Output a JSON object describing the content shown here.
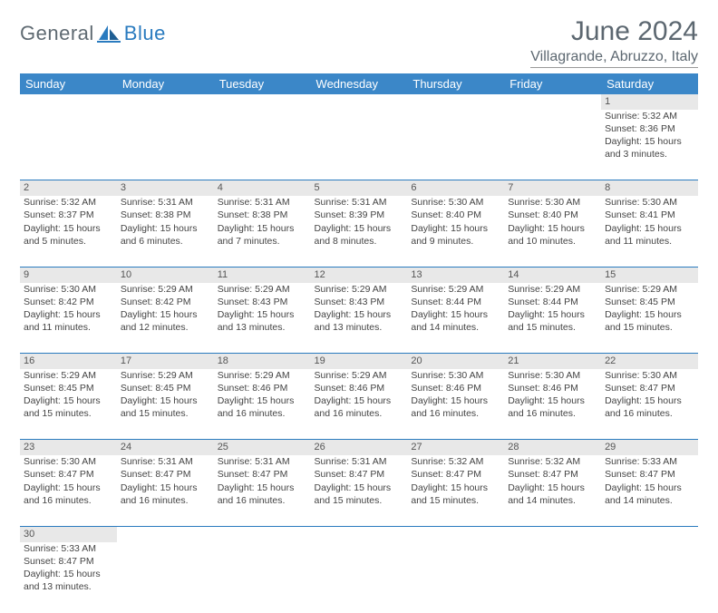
{
  "logo": {
    "text1": "General",
    "text2": "Blue"
  },
  "title": "June 2024",
  "location": "Villagrande, Abruzzo, Italy",
  "colors": {
    "header_bg": "#3b87c8",
    "header_text": "#ffffff",
    "accent": "#2a7bbf",
    "daynum_bg": "#e8e8e8",
    "text": "#444444",
    "title_text": "#5c6770"
  },
  "weekdays": [
    "Sunday",
    "Monday",
    "Tuesday",
    "Wednesday",
    "Thursday",
    "Friday",
    "Saturday"
  ],
  "weeks": [
    [
      null,
      null,
      null,
      null,
      null,
      null,
      {
        "n": "1",
        "sr": "5:32 AM",
        "ss": "8:36 PM",
        "dl": "15 hours and 3 minutes."
      }
    ],
    [
      {
        "n": "2",
        "sr": "5:32 AM",
        "ss": "8:37 PM",
        "dl": "15 hours and 5 minutes."
      },
      {
        "n": "3",
        "sr": "5:31 AM",
        "ss": "8:38 PM",
        "dl": "15 hours and 6 minutes."
      },
      {
        "n": "4",
        "sr": "5:31 AM",
        "ss": "8:38 PM",
        "dl": "15 hours and 7 minutes."
      },
      {
        "n": "5",
        "sr": "5:31 AM",
        "ss": "8:39 PM",
        "dl": "15 hours and 8 minutes."
      },
      {
        "n": "6",
        "sr": "5:30 AM",
        "ss": "8:40 PM",
        "dl": "15 hours and 9 minutes."
      },
      {
        "n": "7",
        "sr": "5:30 AM",
        "ss": "8:40 PM",
        "dl": "15 hours and 10 minutes."
      },
      {
        "n": "8",
        "sr": "5:30 AM",
        "ss": "8:41 PM",
        "dl": "15 hours and 11 minutes."
      }
    ],
    [
      {
        "n": "9",
        "sr": "5:30 AM",
        "ss": "8:42 PM",
        "dl": "15 hours and 11 minutes."
      },
      {
        "n": "10",
        "sr": "5:29 AM",
        "ss": "8:42 PM",
        "dl": "15 hours and 12 minutes."
      },
      {
        "n": "11",
        "sr": "5:29 AM",
        "ss": "8:43 PM",
        "dl": "15 hours and 13 minutes."
      },
      {
        "n": "12",
        "sr": "5:29 AM",
        "ss": "8:43 PM",
        "dl": "15 hours and 13 minutes."
      },
      {
        "n": "13",
        "sr": "5:29 AM",
        "ss": "8:44 PM",
        "dl": "15 hours and 14 minutes."
      },
      {
        "n": "14",
        "sr": "5:29 AM",
        "ss": "8:44 PM",
        "dl": "15 hours and 15 minutes."
      },
      {
        "n": "15",
        "sr": "5:29 AM",
        "ss": "8:45 PM",
        "dl": "15 hours and 15 minutes."
      }
    ],
    [
      {
        "n": "16",
        "sr": "5:29 AM",
        "ss": "8:45 PM",
        "dl": "15 hours and 15 minutes."
      },
      {
        "n": "17",
        "sr": "5:29 AM",
        "ss": "8:45 PM",
        "dl": "15 hours and 15 minutes."
      },
      {
        "n": "18",
        "sr": "5:29 AM",
        "ss": "8:46 PM",
        "dl": "15 hours and 16 minutes."
      },
      {
        "n": "19",
        "sr": "5:29 AM",
        "ss": "8:46 PM",
        "dl": "15 hours and 16 minutes."
      },
      {
        "n": "20",
        "sr": "5:30 AM",
        "ss": "8:46 PM",
        "dl": "15 hours and 16 minutes."
      },
      {
        "n": "21",
        "sr": "5:30 AM",
        "ss": "8:46 PM",
        "dl": "15 hours and 16 minutes."
      },
      {
        "n": "22",
        "sr": "5:30 AM",
        "ss": "8:47 PM",
        "dl": "15 hours and 16 minutes."
      }
    ],
    [
      {
        "n": "23",
        "sr": "5:30 AM",
        "ss": "8:47 PM",
        "dl": "15 hours and 16 minutes."
      },
      {
        "n": "24",
        "sr": "5:31 AM",
        "ss": "8:47 PM",
        "dl": "15 hours and 16 minutes."
      },
      {
        "n": "25",
        "sr": "5:31 AM",
        "ss": "8:47 PM",
        "dl": "15 hours and 16 minutes."
      },
      {
        "n": "26",
        "sr": "5:31 AM",
        "ss": "8:47 PM",
        "dl": "15 hours and 15 minutes."
      },
      {
        "n": "27",
        "sr": "5:32 AM",
        "ss": "8:47 PM",
        "dl": "15 hours and 15 minutes."
      },
      {
        "n": "28",
        "sr": "5:32 AM",
        "ss": "8:47 PM",
        "dl": "15 hours and 14 minutes."
      },
      {
        "n": "29",
        "sr": "5:33 AM",
        "ss": "8:47 PM",
        "dl": "15 hours and 14 minutes."
      }
    ],
    [
      {
        "n": "30",
        "sr": "5:33 AM",
        "ss": "8:47 PM",
        "dl": "15 hours and 13 minutes."
      },
      null,
      null,
      null,
      null,
      null,
      null
    ]
  ],
  "labels": {
    "sunrise": "Sunrise:",
    "sunset": "Sunset:",
    "daylight": "Daylight:"
  }
}
